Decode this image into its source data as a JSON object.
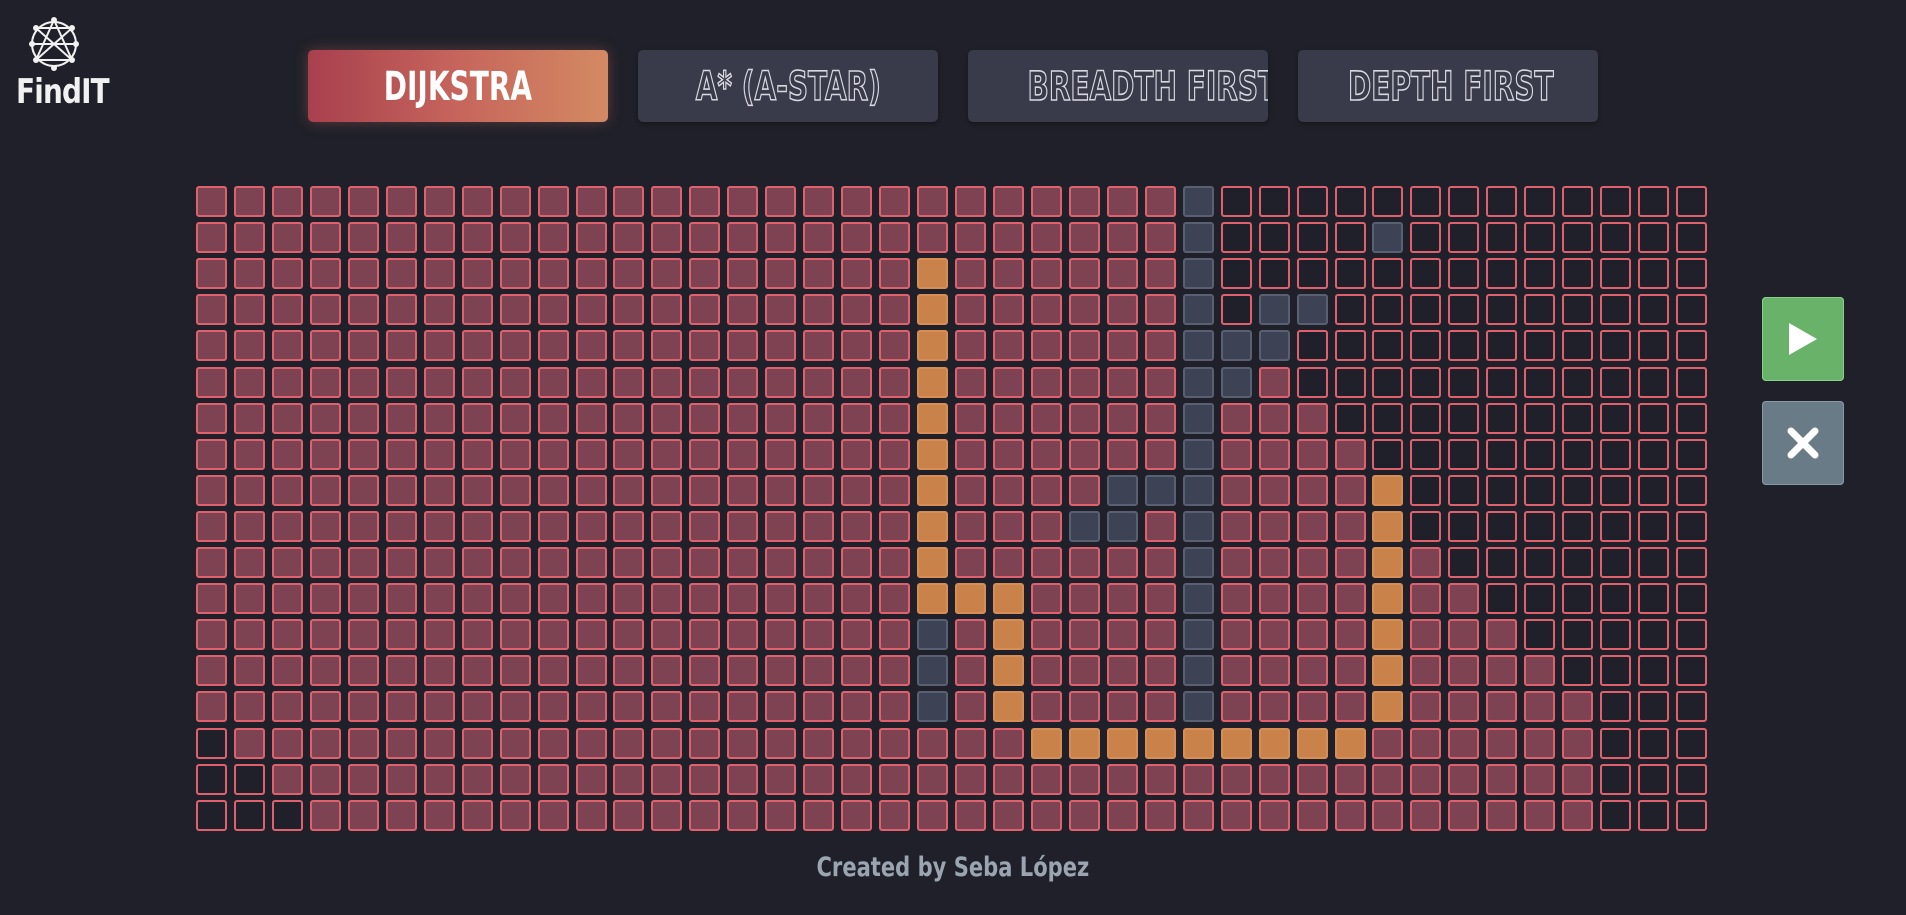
{
  "app": {
    "title": "FindIT"
  },
  "algorithms": [
    {
      "label": "DIJKSTRA",
      "active": true
    },
    {
      "label": "A* (A-STAR)",
      "active": false
    },
    {
      "label": "BREADTH FIRST",
      "active": false
    },
    {
      "label": "DEPTH FIRST",
      "active": false
    }
  ],
  "controls": {
    "play_icon": "play-icon",
    "clear_icon": "close-icon"
  },
  "grid": {
    "columns": 40,
    "rows": 18,
    "legend": {
      ".": "visited",
      "o": "empty",
      "w": "wall",
      "p": "path"
    },
    "cells": [
      "..........................wooooooooooooo",
      "..........................woooowoooooooo",
      "...................p......wooooooooooooo",
      "...................p......wowwoooooooooo",
      "...................p......wwwooooooooooo",
      "...................p......ww.ooooooooooo",
      "...................p......w...oooooooooo",
      "...................p......w....ooooooooo",
      "...................p....www....poooooooo",
      "...................p...ww.w....poooooooo",
      "...................p......w....p.ooooooo",
      "...................ppp....w....p..oooooo",
      "...................w.p....w....p...ooooo",
      "...................w.p....w....p....oooo",
      "...................w.p....w....p.....ooo",
      "o.....................ppppppppp......ooo",
      "oo...................................ooo",
      "ooo..................................ooo"
    ]
  },
  "colors": {
    "background": "#1f2029",
    "visited": "#7e4352",
    "visited_border": "#e0616e",
    "wall": "#3d4354",
    "path": "#c9824a",
    "play": "#69b26a",
    "clear": "#697b87",
    "active_gradient_start": "#a8404e",
    "active_gradient_end": "#d38a62"
  },
  "footer": {
    "credit": "Created by Seba López"
  }
}
